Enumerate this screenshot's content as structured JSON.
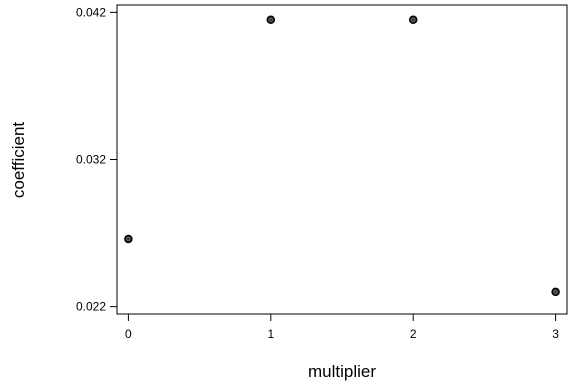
{
  "chart_data": {
    "type": "scatter",
    "title": "",
    "xlabel": "multiplier",
    "ylabel": "coefficient",
    "x_ticks": [
      "0",
      "1",
      "2",
      "3"
    ],
    "y_ticks": [
      "0.022",
      "0.032",
      "0.042"
    ],
    "xlim": [
      -0.08,
      3.08
    ],
    "ylim": [
      0.0215,
      0.0425
    ],
    "grid": false,
    "legend": "none",
    "marker_color": "#000000",
    "series": [
      {
        "x": [
          0,
          1,
          2,
          3
        ],
        "y": [
          0.0266,
          0.0415,
          0.0415,
          0.023
        ]
      }
    ]
  }
}
